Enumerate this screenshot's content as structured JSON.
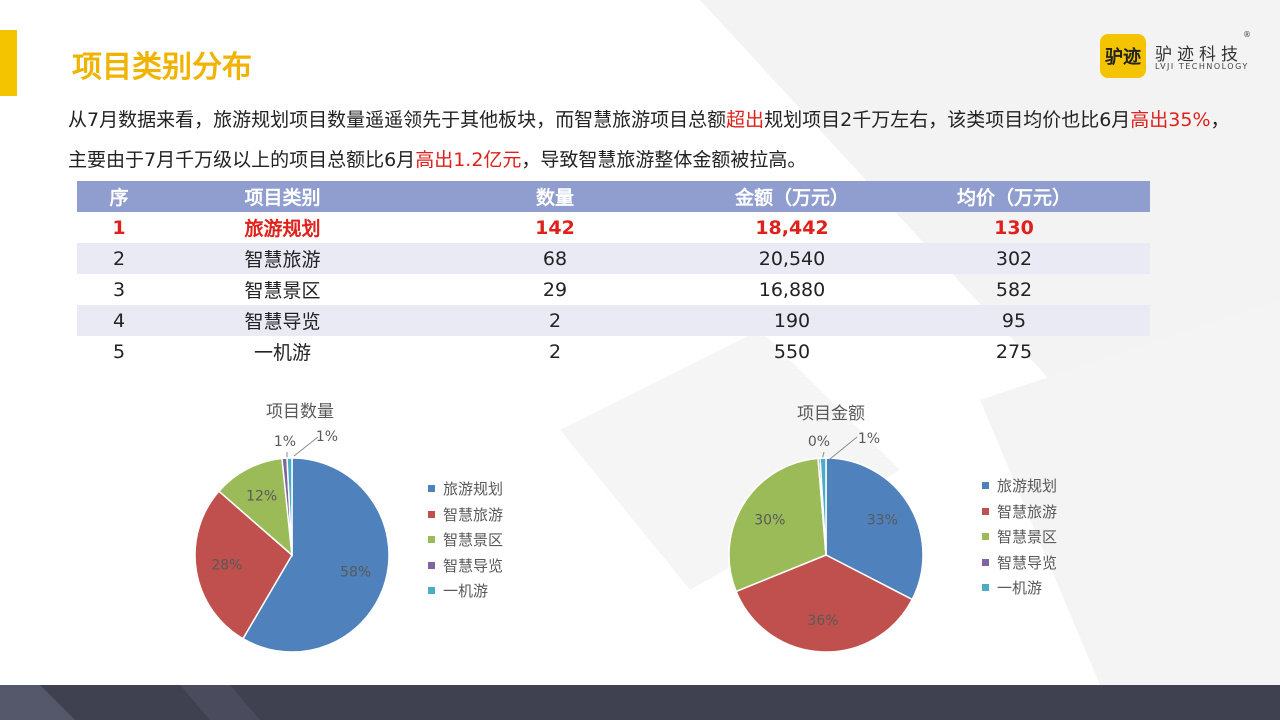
{
  "header": {
    "title": "项目类别分布",
    "logo": {
      "badge": "驴迹",
      "name_cn": "驴迹科技",
      "name_en": "LVJI TECHNOLOGY",
      "reg": "®"
    }
  },
  "summary": {
    "s1": "从7月数据来看，旅游规划项目数量遥遥领先于其他板块，而智慧旅游项目总额",
    "h1": "超出",
    "s2": "规划项目2千万左右，该类项目均价也比6月",
    "h2": "高出35%",
    "s3": "，主要由于7月千万级以上的项目总额比6月",
    "h3": "高出1.2亿元",
    "s4": "，导致智慧旅游整体金额被拉高。"
  },
  "table": {
    "headers": [
      "序",
      "项目类别",
      "数量",
      "金额（万元）",
      "均价（万元）"
    ],
    "rows": [
      [
        "1",
        "旅游规划",
        "142",
        "18,442",
        "130"
      ],
      [
        "2",
        "智慧旅游",
        "68",
        "20,540",
        "302"
      ],
      [
        "3",
        "智慧景区",
        "29",
        "16,880",
        "582"
      ],
      [
        "4",
        "智慧导览",
        "2",
        "190",
        "95"
      ],
      [
        "5",
        "一机游",
        "2",
        "550",
        "275"
      ]
    ]
  },
  "colors": {
    "accent": "#f5c400",
    "highlight": "#e0201b",
    "table_header": "#8f9dcf",
    "table_alt_row": "#eaeaf5",
    "footer": "#3f4150",
    "series": [
      "#4f81bd",
      "#c0504d",
      "#9bbb59",
      "#8064a2",
      "#4bacc6"
    ]
  },
  "chart_data": [
    {
      "type": "pie",
      "title": "项目数量",
      "categories": [
        "旅游规划",
        "智慧旅游",
        "智慧景区",
        "智慧导览",
        "一机游"
      ],
      "values": [
        142,
        68,
        29,
        2,
        2
      ],
      "labels": [
        "58%",
        "28%",
        "12%",
        "1%",
        "1%"
      ],
      "legend": "right"
    },
    {
      "type": "pie",
      "title": "项目金额",
      "categories": [
        "旅游规划",
        "智慧旅游",
        "智慧景区",
        "智慧导览",
        "一机游"
      ],
      "values": [
        18442,
        20540,
        16880,
        190,
        550
      ],
      "labels": [
        "33%",
        "36%",
        "30%",
        "0%",
        "1%"
      ],
      "legend": "right"
    }
  ]
}
